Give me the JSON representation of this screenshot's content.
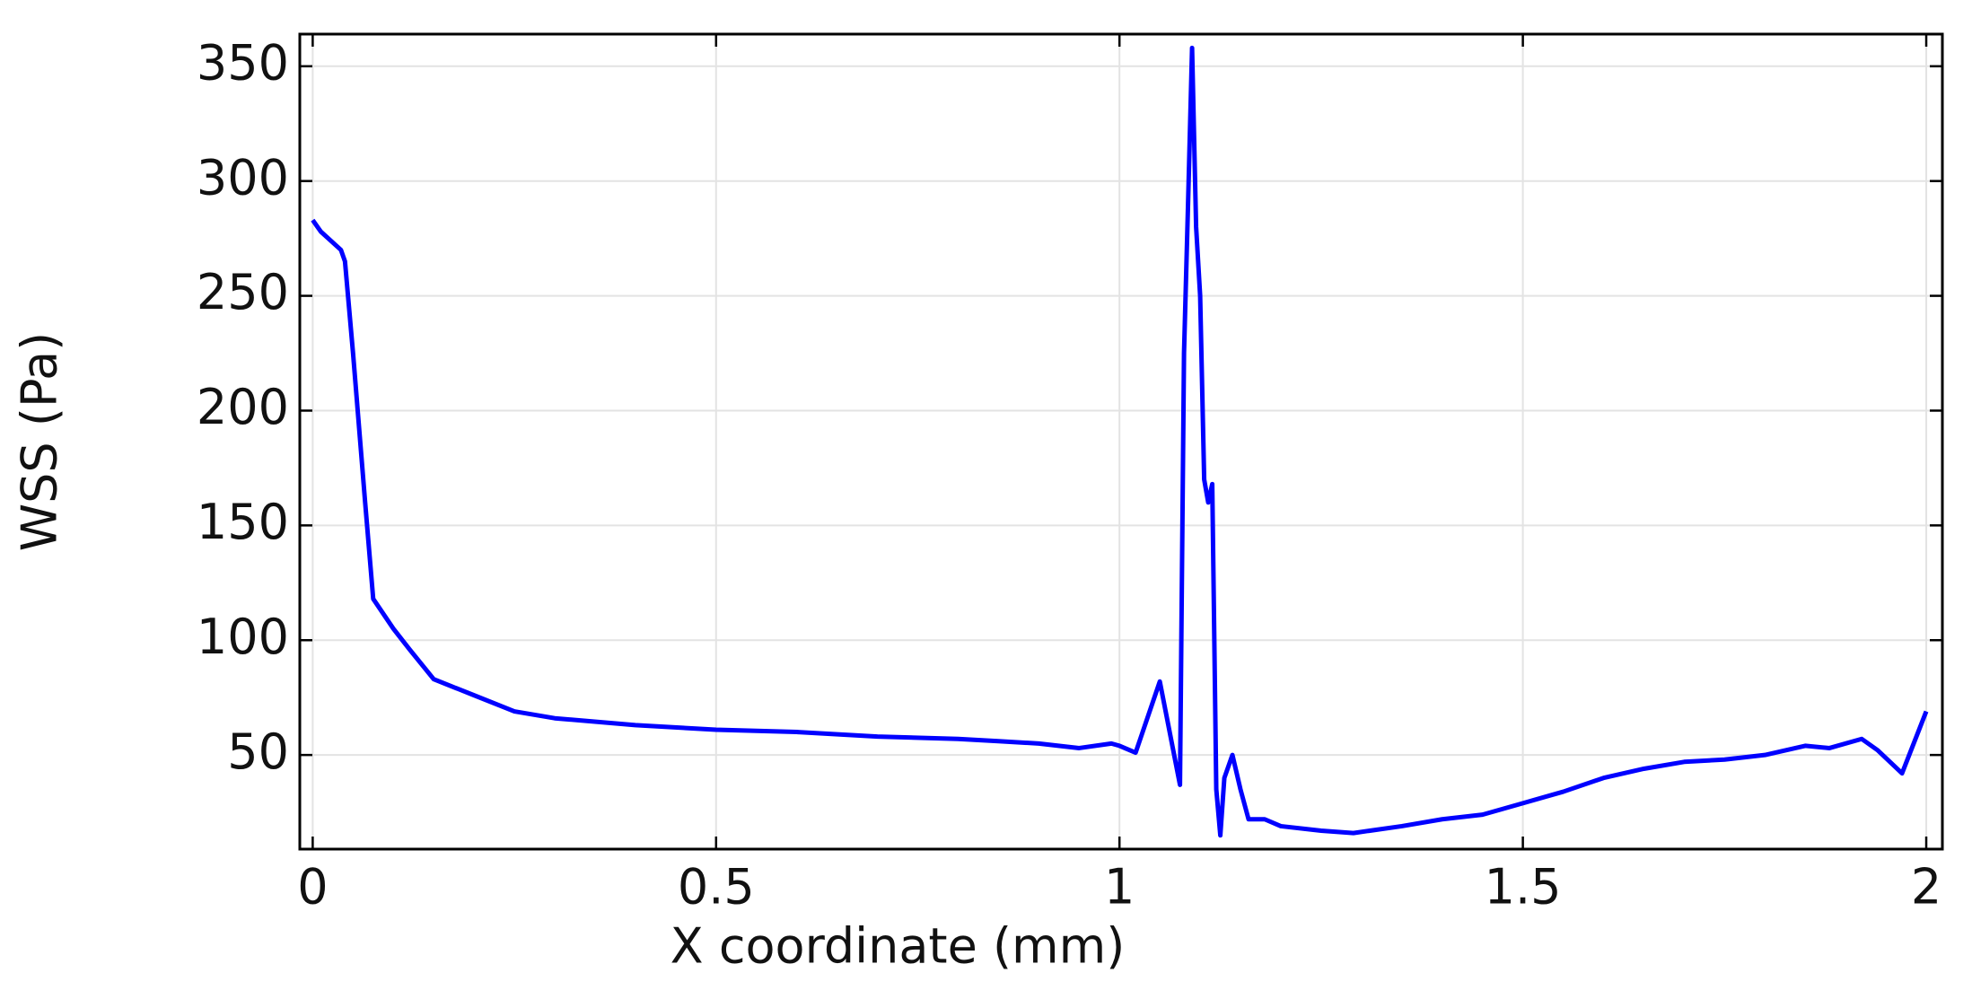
{
  "chart_data": {
    "type": "line",
    "xlabel": "X coordinate (mm)",
    "ylabel": "WSS (Pa)",
    "x": [
      0,
      0.01,
      0.035,
      0.04,
      0.05,
      0.065,
      0.075,
      0.1,
      0.12,
      0.15,
      0.2,
      0.25,
      0.3,
      0.4,
      0.5,
      0.6,
      0.7,
      0.8,
      0.85,
      0.9,
      0.95,
      0.99,
      1.0,
      1.02,
      1.05,
      1.075,
      1.08,
      1.085,
      1.09,
      1.095,
      1.1,
      1.105,
      1.11,
      1.115,
      1.12,
      1.125,
      1.13,
      1.14,
      1.15,
      1.16,
      1.18,
      1.2,
      1.25,
      1.29,
      1.35,
      1.4,
      1.45,
      1.5,
      1.55,
      1.6,
      1.65,
      1.7,
      1.75,
      1.8,
      1.85,
      1.88,
      1.92,
      1.94,
      1.97,
      2.0
    ],
    "series": [
      {
        "name": "WSS",
        "color": "#0000ff",
        "values": [
          283,
          278,
          270,
          265,
          225,
          160,
          118,
          105,
          96,
          83,
          76,
          69,
          66,
          63,
          61,
          60,
          58,
          57,
          56,
          55,
          53,
          55,
          54,
          51,
          82,
          37,
          225,
          290,
          358,
          280,
          250,
          170,
          160,
          168,
          35,
          15,
          40,
          50,
          35,
          22,
          22,
          19,
          17,
          16,
          19,
          22,
          24,
          29,
          34,
          40,
          44,
          47,
          48,
          50,
          54,
          53,
          57,
          52,
          42,
          69
        ]
      }
    ],
    "xlim": [
      -0.016,
      2.02
    ],
    "xticks": [
      0,
      0.5,
      1,
      1.5,
      2
    ],
    "ylim": [
      9,
      364
    ],
    "yticks": [
      50,
      100,
      150,
      200,
      250,
      300,
      350
    ],
    "grid": true
  }
}
